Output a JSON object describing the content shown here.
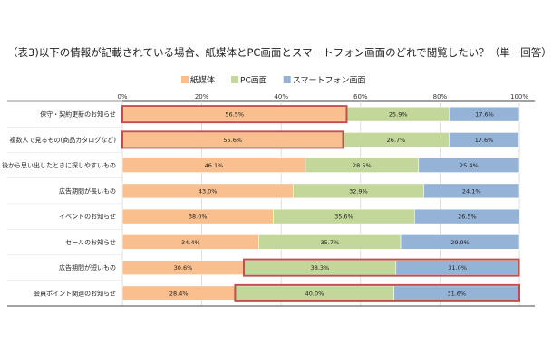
{
  "chart_data": {
    "type": "bar",
    "orientation": "horizontal",
    "stacked": "percent",
    "title": "（表3)以下の情報が記載されている場合、紙媒体とPC画面とスマートフォン画面のどれで閲覧したい？（単一回答）",
    "legend_position": "top",
    "xlim": [
      0,
      100
    ],
    "x_ticks": [
      "0%",
      "20%",
      "40%",
      "60%",
      "80%",
      "100%"
    ],
    "grid": true,
    "categories": [
      "保守・契約更新のお知らせ",
      "複数人で見るもの(商品カタログなど)",
      "後から思い出したときに探しやすいもの",
      "広告期間が長いもの",
      "イベントのお知らせ",
      "セールのお知らせ",
      "広告期間が短いもの",
      "会員ポイント関連のお知らせ"
    ],
    "series": [
      {
        "name": "紙媒体",
        "color": "#f9bf8f",
        "values": [
          56.5,
          55.6,
          46.1,
          43.0,
          38.0,
          34.4,
          30.6,
          28.4
        ],
        "labels": [
          "56.5%",
          "55.6%",
          "46.1%",
          "43.0%",
          "38.0%",
          "34.4%",
          "30.6%",
          "28.4%"
        ]
      },
      {
        "name": "PC画面",
        "color": "#c4d79b",
        "values": [
          25.9,
          26.7,
          28.5,
          32.9,
          35.6,
          35.7,
          38.3,
          40.0
        ],
        "labels": [
          "25.9%",
          "26.7%",
          "28.5%",
          "32.9%",
          "35.6%",
          "35.7%",
          "38.3%",
          "40.0%"
        ]
      },
      {
        "name": "スマートフォン画面",
        "color": "#95b3d7",
        "values": [
          17.6,
          17.6,
          25.4,
          24.1,
          26.5,
          29.9,
          31.0,
          31.6
        ],
        "labels": [
          "17.6%",
          "17.6%",
          "25.4%",
          "24.1%",
          "26.5%",
          "29.9%",
          "31.0%",
          "31.6%"
        ]
      }
    ],
    "highlights": [
      {
        "row": 0,
        "series": 0
      },
      {
        "row": 1,
        "series": 0
      },
      {
        "row": 6,
        "series_from": 1,
        "series_to": 2
      },
      {
        "row": 7,
        "series_from": 1,
        "series_to": 2
      }
    ],
    "highlight_color": "#c0504d"
  }
}
